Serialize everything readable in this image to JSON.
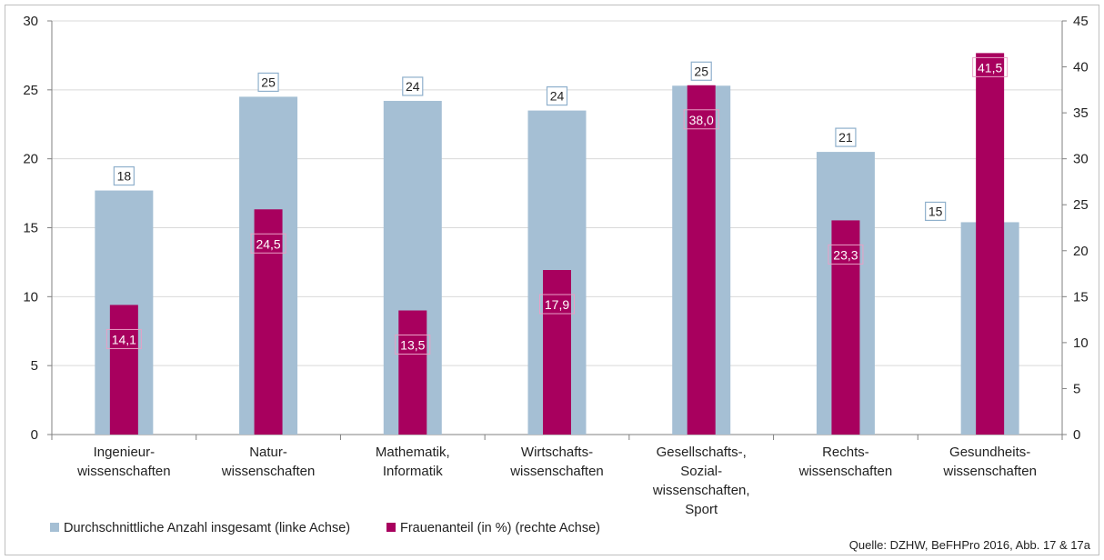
{
  "chart_data": {
    "type": "bar",
    "categories": [
      [
        "Ingenieur-",
        "wissenschaften"
      ],
      [
        "Natur-",
        "wissenschaften"
      ],
      [
        "Mathematik,",
        "Informatik"
      ],
      [
        "Wirtschafts-",
        "wissenschaften"
      ],
      [
        "Gesellschafts-,",
        "Sozial-",
        "wissenschaften,",
        "Sport"
      ],
      [
        "Rechts-",
        "wissenschaften"
      ],
      [
        "Gesundheits-",
        "wissenschaften"
      ]
    ],
    "series": [
      {
        "name": "Durchschnittliche Anzahl insgesamt (linke Achse)",
        "axis": "left",
        "color": "#a5bfd4",
        "values": [
          17.7,
          24.5,
          24.2,
          23.5,
          25.3,
          20.5,
          15.4
        ],
        "labels": [
          "18",
          "25",
          "24",
          "24",
          "25",
          "21",
          "15"
        ]
      },
      {
        "name": "Frauenanteil (in %) (rechte Achse)",
        "axis": "right",
        "color": "#a8005e",
        "values": [
          14.1,
          24.5,
          13.5,
          17.9,
          38.0,
          23.3,
          41.5
        ],
        "labels": [
          "14,1",
          "24,5",
          "13,5",
          "17,9",
          "38,0",
          "23,3",
          "41,5"
        ]
      }
    ],
    "left_axis": {
      "ylim": [
        0,
        30
      ],
      "ticks": [
        "0",
        "5",
        "10",
        "15",
        "20",
        "25",
        "30"
      ]
    },
    "right_axis": {
      "ylim": [
        0,
        45
      ],
      "ticks": [
        "0",
        "5",
        "10",
        "15",
        "20",
        "25",
        "30",
        "35",
        "40",
        "45"
      ]
    },
    "grid": true,
    "legend_position": "bottom-left"
  },
  "source_note": "Quelle: DZHW, BeFHPro 2016, Abb. 17 & 17a"
}
